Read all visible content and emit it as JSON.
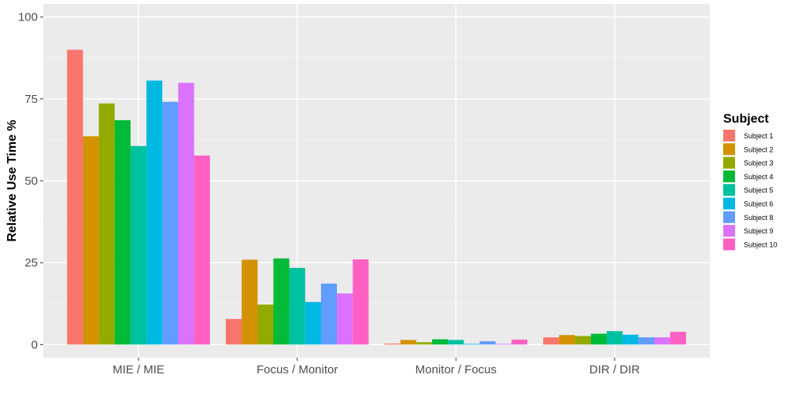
{
  "chart_data": {
    "type": "bar",
    "title": "",
    "xlabel": "",
    "ylabel": "Relative Use Time %",
    "ylim": [
      -4,
      104
    ],
    "yticks": [
      0,
      25,
      50,
      75,
      100
    ],
    "grid": true,
    "legend_title": "Subject",
    "legend_position": "right",
    "categories": [
      "MIE / MIE",
      "Focus / Monitor",
      "Monitor / Focus",
      "DIR / DIR"
    ],
    "series": [
      {
        "name": "Subject 1",
        "color": "#F8766D",
        "values": [
          90.0,
          7.8,
          0.3,
          2.2
        ]
      },
      {
        "name": "Subject 2",
        "color": "#D39200",
        "values": [
          63.6,
          25.9,
          1.4,
          2.9
        ]
      },
      {
        "name": "Subject 3",
        "color": "#93AA00",
        "values": [
          73.6,
          12.2,
          0.7,
          2.6
        ]
      },
      {
        "name": "Subject 4",
        "color": "#00BA38",
        "values": [
          68.5,
          26.3,
          1.6,
          3.3
        ]
      },
      {
        "name": "Subject 5",
        "color": "#00C19F",
        "values": [
          60.6,
          23.4,
          1.4,
          4.1
        ]
      },
      {
        "name": "Subject 6",
        "color": "#00B9E3",
        "values": [
          80.6,
          13.0,
          0.2,
          3.0
        ]
      },
      {
        "name": "Subject 8",
        "color": "#619CFF",
        "values": [
          74.1,
          18.6,
          1.0,
          2.2
        ]
      },
      {
        "name": "Subject 9",
        "color": "#DB72FB",
        "values": [
          79.9,
          15.6,
          0.2,
          2.2
        ]
      },
      {
        "name": "Subject 10",
        "color": "#FF61C3",
        "values": [
          57.7,
          26.0,
          1.5,
          3.9
        ]
      }
    ]
  }
}
